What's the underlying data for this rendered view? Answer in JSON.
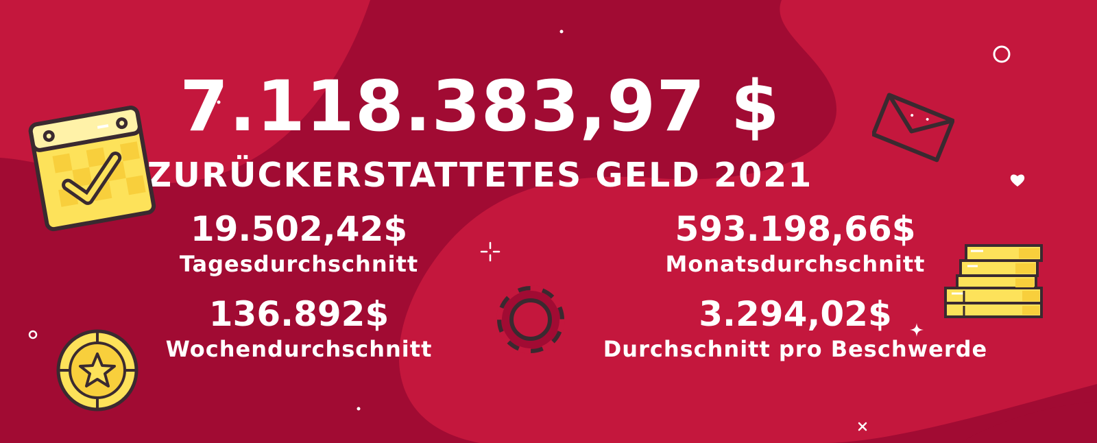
{
  "headline": {
    "total": "7.118.383,97 $",
    "subtitle": "ZURÜCKERSTATTETES GELD 2021"
  },
  "stats": {
    "daily": {
      "value": "19.502,42$",
      "label": "Tagesdurchschnitt"
    },
    "weekly": {
      "value": "136.892$",
      "label": "Wochendurchschnitt"
    },
    "monthly": {
      "value": "593.198,66$",
      "label": "Monatsdurchschnitt"
    },
    "per_complaint": {
      "value": "3.294,02$",
      "label": "Durchschnitt pro Beschwerde"
    }
  },
  "colors": {
    "background_dark": "#a10b33",
    "background_light": "#c4173d",
    "text": "#ffffff",
    "icon_yellow": "#fde25a",
    "icon_outline": "#3a2a30"
  },
  "icons": [
    "calendar-check-icon",
    "envelope-icon",
    "heart-icon",
    "coin-star-icon",
    "poker-chip-icon",
    "coin-stack-icon",
    "sparkle-icon"
  ]
}
